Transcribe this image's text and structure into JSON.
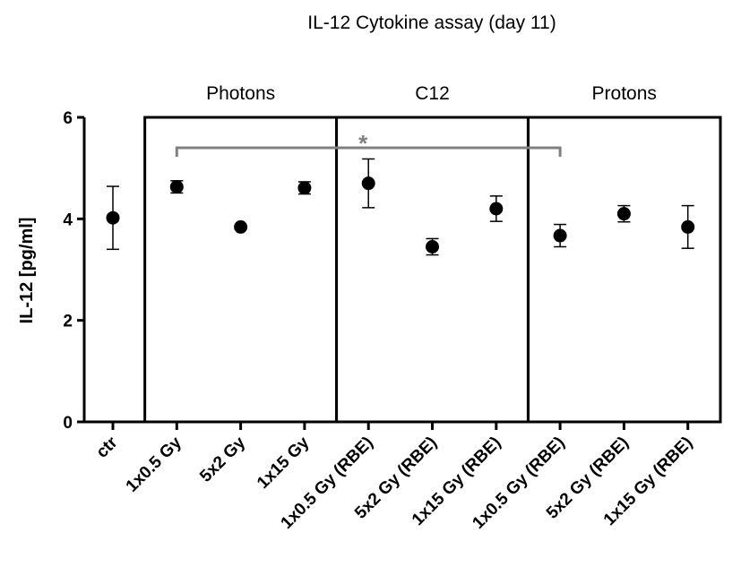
{
  "chart_data": {
    "type": "scatter",
    "title": "IL-12 Cytokine assay (day 11)",
    "xlabel": "",
    "ylabel": "IL-12 [pg/ml]",
    "ylim": [
      0,
      6
    ],
    "yticks": [
      "0",
      "2",
      "4",
      "6"
    ],
    "grid": false,
    "categories": [
      "ctr",
      "1x0.5 Gy",
      "5x2 Gy",
      "1x15 Gy",
      "1x0.5 Gy (RBE)",
      "5x2 Gy (RBE)",
      "1x15 Gy (RBE)",
      "1x0.5 Gy (RBE)",
      "5x2 Gy (RBE)",
      "1x15 Gy (RBE)"
    ],
    "values": [
      4.02,
      4.63,
      3.84,
      4.61,
      4.7,
      3.45,
      4.2,
      3.67,
      4.1,
      3.84
    ],
    "error_low": [
      0.62,
      0.12,
      0.0,
      0.12,
      0.48,
      0.16,
      0.25,
      0.22,
      0.16,
      0.42
    ],
    "error_high": [
      0.62,
      0.12,
      0.0,
      0.12,
      0.48,
      0.16,
      0.25,
      0.22,
      0.16,
      0.42
    ],
    "groups": [
      {
        "label": "Photons",
        "from": 1,
        "to": 3
      },
      {
        "label": "C12",
        "from": 4,
        "to": 6
      },
      {
        "label": "Protons",
        "from": 7,
        "to": 9
      }
    ],
    "significance": [
      {
        "label": "*",
        "from": 1,
        "to": 7,
        "y": 5.4
      }
    ],
    "colors": {
      "points": "#000000",
      "significance": "#808080"
    }
  }
}
